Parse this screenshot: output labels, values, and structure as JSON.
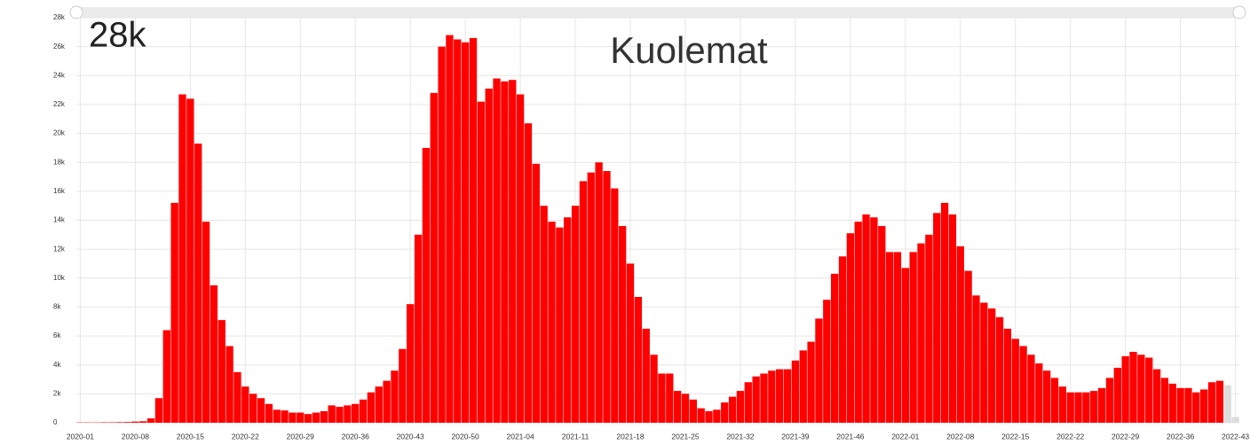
{
  "chart_data": {
    "type": "bar",
    "title": "Kuolemat",
    "annotation": "28k",
    "categories": [
      "2020-01",
      null,
      null,
      null,
      null,
      null,
      null,
      "2020-08",
      null,
      null,
      null,
      null,
      null,
      null,
      "2020-15",
      null,
      null,
      null,
      null,
      null,
      null,
      "2020-22",
      null,
      null,
      null,
      null,
      null,
      null,
      "2020-29",
      null,
      null,
      null,
      null,
      null,
      null,
      "2020-36",
      null,
      null,
      null,
      null,
      null,
      null,
      "2020-43",
      null,
      null,
      null,
      null,
      null,
      null,
      "2020-50",
      null,
      null,
      null,
      null,
      null,
      null,
      "2021-04",
      null,
      null,
      null,
      null,
      null,
      null,
      "2021-11",
      null,
      null,
      null,
      null,
      null,
      null,
      "2021-18",
      null,
      null,
      null,
      null,
      null,
      null,
      "2021-25",
      null,
      null,
      null,
      null,
      null,
      null,
      "2021-32",
      null,
      null,
      null,
      null,
      null,
      null,
      "2021-39",
      null,
      null,
      null,
      null,
      null,
      null,
      "2021-46",
      null,
      null,
      null,
      null,
      null,
      null,
      "2022-01",
      null,
      null,
      null,
      null,
      null,
      null,
      "2022-08",
      null,
      null,
      null,
      null,
      null,
      null,
      "2022-15",
      null,
      null,
      null,
      null,
      null,
      null,
      "2022-22",
      null,
      null,
      null,
      null,
      null,
      null,
      "2022-29",
      null,
      null,
      null,
      null,
      null,
      null,
      "2022-36",
      null,
      null,
      null,
      null,
      null,
      null,
      "2022-43"
    ],
    "series": [
      {
        "color": "#ff0000",
        "values": [
          20,
          20,
          20,
          30,
          30,
          40,
          50,
          80,
          100,
          300,
          1700,
          6400,
          15200,
          22700,
          22400,
          19300,
          13900,
          9500,
          7100,
          5300,
          3500,
          2500,
          2000,
          1700,
          1300,
          900,
          850,
          700,
          700,
          600,
          700,
          800,
          1200,
          1100,
          1200,
          1300,
          1600,
          2100,
          2500,
          2900,
          3600,
          5100,
          8200,
          13000,
          19000,
          22800,
          26000,
          26800,
          26500,
          26300,
          26600,
          22200,
          23100,
          23800,
          23600,
          23700,
          22700,
          20700,
          17900,
          15000,
          13900,
          13500,
          14200,
          15000,
          16700,
          17300,
          18000,
          17400,
          16200,
          13600,
          11000,
          8700,
          6500,
          4700,
          3400,
          3400,
          2200,
          2000,
          1600,
          1000,
          800,
          900,
          1400,
          1800,
          2200,
          2800,
          3200,
          3400,
          3600,
          3700,
          3700,
          4300,
          5000,
          5600,
          7200,
          8500,
          10300,
          11500,
          13100,
          13900,
          14400,
          14200,
          13600,
          11800,
          11800,
          10700,
          11800,
          12400,
          13000,
          14500,
          15200,
          14400,
          12200,
          10500,
          8800,
          8300,
          7900,
          7300,
          6500,
          5800,
          5300,
          4700,
          4100,
          3600,
          3100,
          2500,
          2100,
          2100,
          2100,
          2200,
          2400,
          3100,
          3800,
          4600,
          4900,
          4700,
          4500,
          3700,
          3100,
          2700,
          2400,
          2400,
          2100,
          2300,
          2800,
          2900,
          null,
          null
        ]
      },
      {
        "color": "#dddddd",
        "values": [
          null,
          null,
          null,
          null,
          null,
          null,
          null,
          null,
          null,
          null,
          null,
          null,
          null,
          null,
          null,
          null,
          null,
          null,
          null,
          null,
          null,
          null,
          null,
          null,
          null,
          null,
          null,
          null,
          null,
          null,
          null,
          null,
          null,
          null,
          null,
          null,
          null,
          null,
          null,
          null,
          null,
          null,
          null,
          null,
          null,
          null,
          null,
          null,
          null,
          null,
          null,
          null,
          null,
          null,
          null,
          null,
          null,
          null,
          null,
          null,
          null,
          null,
          null,
          null,
          null,
          null,
          null,
          null,
          null,
          null,
          null,
          null,
          null,
          null,
          null,
          null,
          null,
          null,
          null,
          null,
          null,
          null,
          null,
          null,
          null,
          null,
          null,
          null,
          null,
          null,
          null,
          null,
          null,
          null,
          null,
          null,
          null,
          null,
          null,
          null,
          null,
          null,
          null,
          null,
          null,
          null,
          null,
          null,
          null,
          null,
          null,
          null,
          null,
          null,
          null,
          null,
          null,
          null,
          null,
          null,
          null,
          null,
          null,
          null,
          null,
          null,
          null,
          null,
          null,
          null,
          null,
          null,
          null,
          null,
          null,
          null,
          null,
          null,
          null,
          null,
          null,
          null,
          null,
          null,
          null,
          null,
          2600,
          400
        ]
      }
    ],
    "ylim": [
      0,
      28000
    ],
    "yticks": [
      0,
      {
        "value": 2000,
        "label": "2k"
      },
      {
        "value": 4000,
        "label": "4k"
      },
      {
        "value": 6000,
        "label": "6k"
      },
      {
        "value": 8000,
        "label": "8k"
      },
      {
        "value": 10000,
        "label": "10k"
      },
      {
        "value": 12000,
        "label": "12k"
      },
      {
        "value": 14000,
        "label": "14k"
      },
      {
        "value": 16000,
        "label": "16k"
      },
      {
        "value": 18000,
        "label": "18k"
      },
      {
        "value": 20000,
        "label": "20k"
      },
      {
        "value": 22000,
        "label": "22k"
      },
      {
        "value": 24000,
        "label": "24k"
      },
      {
        "value": 26000,
        "label": "26k"
      },
      {
        "value": 28000,
        "label": "28k"
      }
    ],
    "grid": true
  }
}
